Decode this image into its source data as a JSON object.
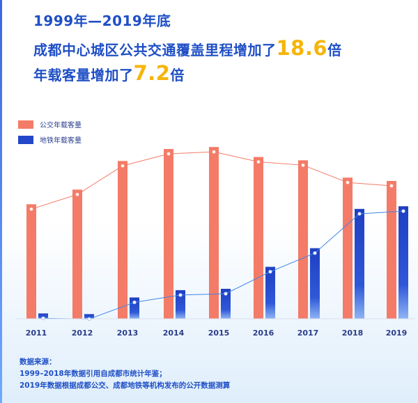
{
  "headline": {
    "line1": "1999年—2019年底",
    "line2_prefix": "成都中心城区公共交通覆盖里程增加了",
    "line2_value": "18.6",
    "line2_suffix": "倍",
    "line3_prefix": "年载客量增加了",
    "line3_value": "7.2",
    "line3_suffix": "倍"
  },
  "chart_data": {
    "type": "bar",
    "categories": [
      "2011",
      "2012",
      "2013",
      "2014",
      "2015",
      "2016",
      "2017",
      "2018",
      "2019"
    ],
    "series": [
      {
        "name": "公交年载客量",
        "color": "#f47b67",
        "values": [
          172,
          194,
          237,
          255,
          258,
          243,
          238,
          212,
          207
        ]
      },
      {
        "name": "地铁年载客量",
        "color": "#2447c9",
        "values": [
          8,
          7,
          32,
          43,
          45,
          78,
          106,
          165,
          169
        ]
      }
    ],
    "ylim": [
      0,
      300
    ],
    "legend_position": "top-left",
    "grid": false
  },
  "source": {
    "title": "数据来源：",
    "line1": "1999–2018年数据引用自成都市统计年鉴；",
    "line2": "2019年数据根据成都公交、成都地铁等机构发布的公开数据测算"
  }
}
